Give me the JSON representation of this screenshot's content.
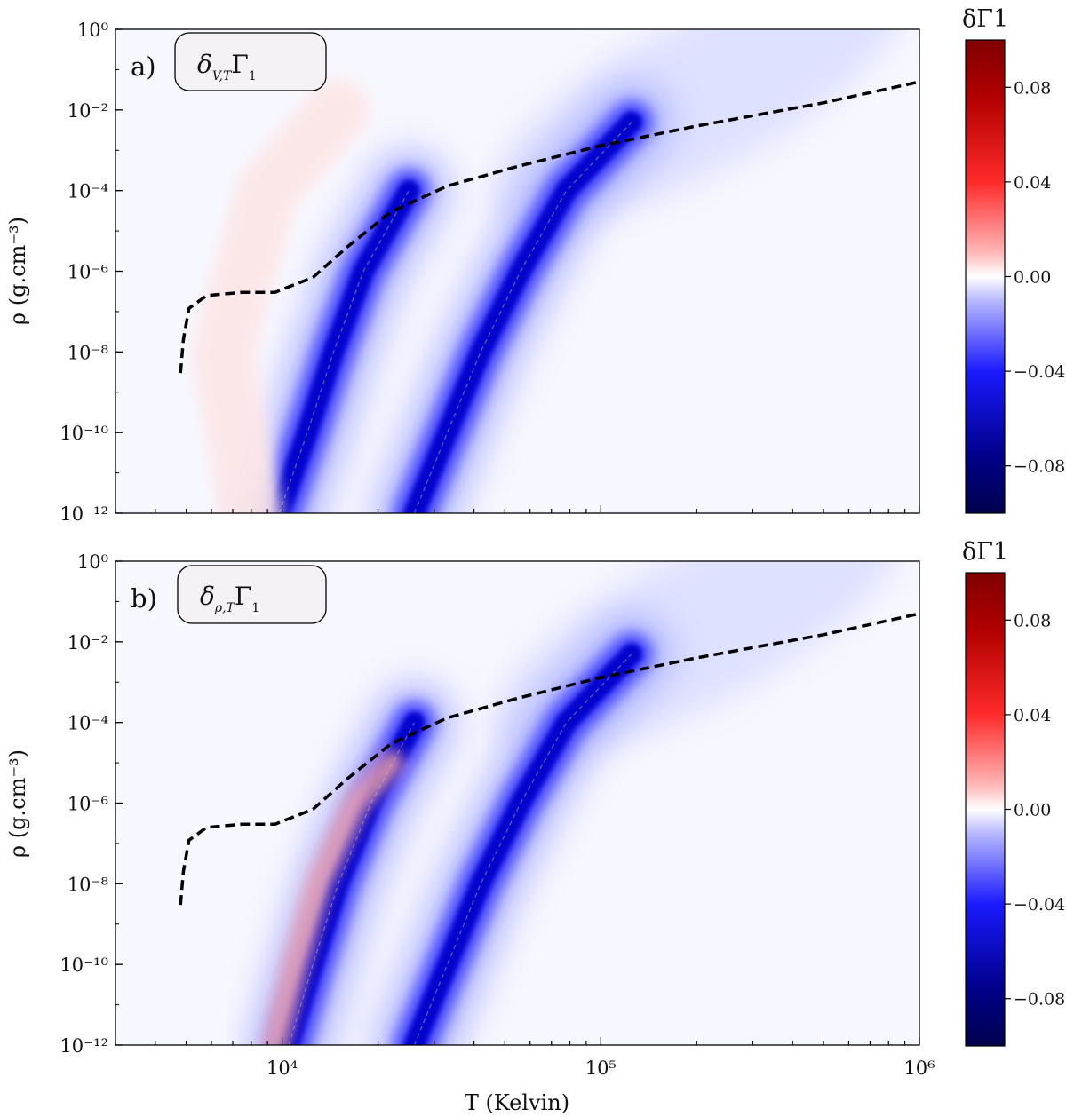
{
  "chart_data": [
    {
      "type": "heatmap",
      "panel_letter": "a)",
      "title": "δV,TΓ1",
      "title_parts": {
        "base": "δ",
        "subscript": "V,T",
        "main": "Γ",
        "main_subscript": "1"
      },
      "xlabel": "T (Kelvin)",
      "ylabel": "ρ (g.cm⁻³)",
      "xscale": "log",
      "yscale": "log",
      "xlim": [
        3000,
        1000000
      ],
      "ylim": [
        1e-12,
        1
      ],
      "xticks": [
        {
          "value": 10000,
          "label": "10⁴"
        },
        {
          "value": 100000,
          "label": "10⁵"
        },
        {
          "value": 1000000,
          "label": "10⁶"
        }
      ],
      "yticks": [
        {
          "value": 1,
          "label": "10⁰"
        },
        {
          "value": 0.01,
          "label": "10⁻²"
        },
        {
          "value": 0.0001,
          "label": "10⁻⁴"
        },
        {
          "value": 1e-06,
          "label": "10⁻⁶"
        },
        {
          "value": 1e-08,
          "label": "10⁻⁸"
        },
        {
          "value": 1e-10,
          "label": "10⁻¹⁰"
        },
        {
          "value": 1e-12,
          "label": "10⁻¹²"
        }
      ],
      "bands": [
        {
          "name": "hydrogen-ionization band",
          "sign": "negative",
          "peak_value": -0.09,
          "ridge": [
            [
              9800,
              1e-12
            ],
            [
              12000,
              1e-10
            ],
            [
              14500,
              1e-08
            ],
            [
              18000,
              1e-06
            ],
            [
              25000,
              0.0001
            ]
          ]
        },
        {
          "name": "helium-ionization band",
          "sign": "negative",
          "peak_value": -0.09,
          "ridge": [
            [
              26000,
              1e-12
            ],
            [
              33000,
              1e-10
            ],
            [
              42000,
              1e-08
            ],
            [
              56000,
              1e-06
            ],
            [
              78000,
              0.0001
            ],
            [
              125000,
              0.005
            ]
          ]
        },
        {
          "name": "positive band",
          "sign": "positive",
          "peak_value": 0.01,
          "ridge": [
            [
              8000,
              1e-12
            ],
            [
              6500,
              1e-08
            ],
            [
              9000,
              0.0001
            ],
            [
              15000,
              0.01
            ]
          ]
        }
      ],
      "dashed_profile": {
        "label": "stellar structure profile",
        "points": [
          [
            4800,
            3e-09
          ],
          [
            4900,
            2e-08
          ],
          [
            5100,
            1.2e-07
          ],
          [
            5800,
            2.5e-07
          ],
          [
            7500,
            3e-07
          ],
          [
            9500,
            3e-07
          ],
          [
            12500,
            7e-07
          ],
          [
            16000,
            4e-06
          ],
          [
            22000,
            3e-05
          ],
          [
            33000,
            0.00013
          ],
          [
            55000,
            0.0004
          ],
          [
            100000,
            0.0013
          ],
          [
            200000,
            0.004
          ],
          [
            500000,
            0.015
          ],
          [
            1000000,
            0.05
          ]
        ]
      },
      "colorbar": {
        "title": "δΓ1",
        "range": [
          -0.1,
          0.1
        ],
        "colormap": "seismic",
        "ticks": [
          {
            "value": 0.08,
            "label": "0.08"
          },
          {
            "value": 0.04,
            "label": "0.04"
          },
          {
            "value": 0.0,
            "label": "0.00"
          },
          {
            "value": -0.04,
            "label": "−0.04"
          },
          {
            "value": -0.08,
            "label": "−0.08"
          }
        ]
      }
    },
    {
      "type": "heatmap",
      "panel_letter": "b)",
      "title": "δρ,TΓ1",
      "title_parts": {
        "base": "δ",
        "subscript": "ρ,T",
        "main": "Γ",
        "main_subscript": "1"
      },
      "xlabel": "T (Kelvin)",
      "ylabel": "ρ (g.cm⁻³)",
      "xscale": "log",
      "yscale": "log",
      "xlim": [
        3000,
        1000000
      ],
      "ylim": [
        1e-12,
        1
      ],
      "xticks": [
        {
          "value": 10000,
          "label": "10⁴"
        },
        {
          "value": 100000,
          "label": "10⁵"
        },
        {
          "value": 1000000,
          "label": "10⁶"
        }
      ],
      "yticks": [
        {
          "value": 1,
          "label": "10⁰"
        },
        {
          "value": 0.01,
          "label": "10⁻²"
        },
        {
          "value": 0.0001,
          "label": "10⁻⁴"
        },
        {
          "value": 1e-06,
          "label": "10⁻⁶"
        },
        {
          "value": 1e-08,
          "label": "10⁻⁸"
        },
        {
          "value": 1e-10,
          "label": "10⁻¹⁰"
        },
        {
          "value": 1e-12,
          "label": "10⁻¹²"
        }
      ],
      "bands": [
        {
          "name": "hydrogen-ionization band",
          "sign": "negative",
          "peak_value": -0.09,
          "ridge": [
            [
              10500,
              1e-12
            ],
            [
              12500,
              1e-10
            ],
            [
              15000,
              1e-08
            ],
            [
              19000,
              1e-06
            ],
            [
              26000,
              0.0001
            ]
          ]
        },
        {
          "name": "helium-ionization band",
          "sign": "negative",
          "peak_value": -0.09,
          "ridge": [
            [
              26000,
              1e-12
            ],
            [
              33000,
              1e-10
            ],
            [
              42000,
              1e-08
            ],
            [
              56000,
              1e-06
            ],
            [
              78000,
              0.0001
            ],
            [
              125000,
              0.005
            ]
          ]
        },
        {
          "name": "positive band",
          "sign": "positive",
          "peak_value": 0.03,
          "ridge": [
            [
              9500,
              1e-12
            ],
            [
              11000,
              1e-10
            ],
            [
              13000,
              1e-08
            ],
            [
              17000,
              1e-06
            ],
            [
              22000,
              1e-05
            ]
          ]
        }
      ],
      "dashed_profile": {
        "label": "stellar structure profile",
        "points": [
          [
            4800,
            3e-09
          ],
          [
            4900,
            2e-08
          ],
          [
            5100,
            1.2e-07
          ],
          [
            5800,
            2.5e-07
          ],
          [
            7500,
            3e-07
          ],
          [
            9500,
            3e-07
          ],
          [
            12500,
            7e-07
          ],
          [
            16000,
            4e-06
          ],
          [
            22000,
            3e-05
          ],
          [
            33000,
            0.00013
          ],
          [
            55000,
            0.0004
          ],
          [
            100000,
            0.0013
          ],
          [
            200000,
            0.004
          ],
          [
            500000,
            0.015
          ],
          [
            1000000,
            0.05
          ]
        ]
      },
      "colorbar": {
        "title": "δΓ1",
        "range": [
          -0.1,
          0.1
        ],
        "colormap": "seismic",
        "ticks": [
          {
            "value": 0.08,
            "label": "0.08"
          },
          {
            "value": 0.04,
            "label": "0.04"
          },
          {
            "value": 0.0,
            "label": "0.00"
          },
          {
            "value": -0.04,
            "label": "−0.04"
          },
          {
            "value": -0.08,
            "label": "−0.08"
          }
        ]
      }
    }
  ],
  "colors": {
    "background_field": "#f7f7ff",
    "negative_peak": "#0000e0",
    "positive_tint": "#fde8e8",
    "dashed_line": "#000000",
    "panel_box_fill": "#f4f2f4"
  }
}
